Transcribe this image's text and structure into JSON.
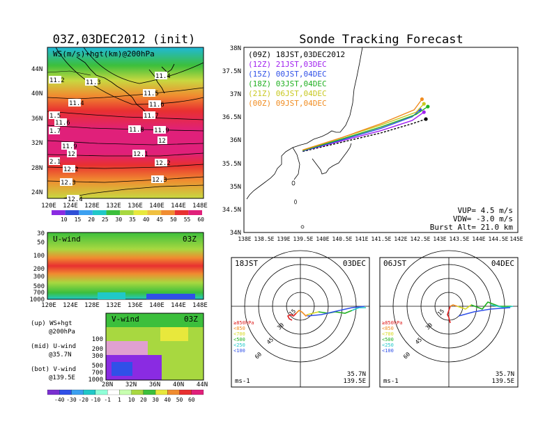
{
  "left_panel": {
    "title": "03Z,03DEC2012 (init)",
    "map_label": "WS(m/s)+hgt(km)@200hPa",
    "lat_ticks": [
      "44N",
      "40N",
      "36N",
      "32N",
      "28N",
      "24N"
    ],
    "lon_ticks": [
      "120E",
      "124E",
      "128E",
      "132E",
      "136E",
      "140E",
      "144E",
      "148E"
    ],
    "contour_labels": [
      "11.2",
      "11.3",
      "11.4",
      "11.5",
      "11.6",
      "11.7",
      "11.8",
      "11.9",
      "12",
      "12.1",
      "12.2",
      "12.3",
      "12.4",
      "11.4",
      "11.5",
      "11.6",
      "1.5",
      "11.6",
      "1.7",
      "11.9",
      "12",
      "2.1",
      "12.2",
      "12.3",
      "12.4"
    ],
    "colorbar_ticks": [
      "10",
      "15",
      "20",
      "25",
      "30",
      "35",
      "40",
      "45",
      "50",
      "55",
      "60"
    ],
    "colors": [
      "#8a2be2",
      "#2f4fd6",
      "#3ca0f0",
      "#20c8c8",
      "#3cbf3c",
      "#a8d840",
      "#e8e83c",
      "#f0c040",
      "#f08c30",
      "#e83030",
      "#e0207a"
    ]
  },
  "uwind": {
    "label": "U-wind",
    "time": "03Z",
    "y_ticks": [
      "30",
      "50",
      "100",
      "200",
      "300",
      "500",
      "700",
      "1000"
    ],
    "x_ticks": [
      "120E",
      "124E",
      "128E",
      "132E",
      "136E",
      "140E",
      "144E",
      "148E"
    ]
  },
  "vwind": {
    "label": "V-wind",
    "time": "03Z",
    "y_ticks": [
      "100",
      "200",
      "300",
      "500",
      "700",
      "1000"
    ],
    "x_ticks": [
      "28N",
      "32N",
      "36N",
      "40N",
      "44N"
    ],
    "colorbar_ticks": [
      "-40",
      "-30",
      "-20",
      "-10",
      "-1",
      "1",
      "10",
      "20",
      "30",
      "40",
      "50",
      "60"
    ]
  },
  "legend_notes": [
    [
      "(up) WS+hgt",
      "@200hPa"
    ],
    [
      "(mid) U-wind",
      "@35.7N"
    ],
    [
      "(bot) V-wind",
      "@139.5E"
    ]
  ],
  "main": {
    "title": "Sonde Tracking Forecast",
    "lat_ticks": [
      "38N",
      "37.5N",
      "37N",
      "36.5N",
      "36N",
      "35.5N",
      "35N",
      "34.5N",
      "34N"
    ],
    "lon_ticks": [
      "138E",
      "138.5E",
      "139E",
      "139.5E",
      "140E",
      "140.5E",
      "141E",
      "141.5E",
      "142E",
      "142.5E",
      "143E",
      "143.5E",
      "144E",
      "144.5E",
      "145E"
    ],
    "legend": [
      {
        "label": "(09Z)  18JST,03DEC2012",
        "color": "#000000"
      },
      {
        "label": "(12Z)  21JST,03DEC",
        "color": "#a020f0"
      },
      {
        "label": "(15Z)  00JST,04DEC",
        "color": "#3050e8"
      },
      {
        "label": "(18Z)  03JST,04DEC",
        "color": "#20b020"
      },
      {
        "label": "(21Z)  06JST,04DEC",
        "color": "#c8c820"
      },
      {
        "label": "(00Z)  09JST,04DEC",
        "color": "#f08c20"
      }
    ],
    "info": [
      "VUP=  4.5 m/s",
      "VDW= -3.0 m/s",
      "Burst Alt= 21.0 km"
    ]
  },
  "hodo_left": {
    "time": "18JST",
    "date": "03DEC",
    "unit": "ms-1",
    "lat": "35.7N",
    "lon": "139.5E",
    "rings": [
      "15",
      "30",
      "45",
      "60"
    ],
    "levels": [
      "≥850hPa",
      "<850",
      "<700",
      "<500",
      "<250",
      "<100"
    ],
    "level_colors": [
      "#e02020",
      "#f08c20",
      "#d8d820",
      "#20b020",
      "#20c8c8",
      "#3050e8"
    ]
  },
  "hodo_right": {
    "time": "06JST",
    "date": "04DEC",
    "unit": "ms-1",
    "lat": "35.7N",
    "lon": "139.5E",
    "rings": [
      "15",
      "30",
      "45",
      "60"
    ],
    "levels": [
      "≥850hPa",
      "<850",
      "<700",
      "<500",
      "<250",
      "<100"
    ],
    "level_colors": [
      "#e02020",
      "#f08c20",
      "#d8d820",
      "#20b020",
      "#20c8c8",
      "#3050e8"
    ]
  },
  "chart_data": [
    {
      "type": "heatmap",
      "title": "03Z,03DEC2012 (init)",
      "subtitle": "WS(m/s)+hgt(km)@200hPa",
      "x_ticks": [
        "120E",
        "124E",
        "128E",
        "132E",
        "136E",
        "140E",
        "144E",
        "148E"
      ],
      "y_ticks": [
        "24N",
        "28N",
        "32N",
        "36N",
        "40N",
        "44N"
      ],
      "colorbar": [
        10,
        15,
        20,
        25,
        30,
        35,
        40,
        45,
        50,
        55,
        60
      ]
    },
    {
      "type": "heatmap",
      "title": "U-wind",
      "x_ticks": [
        "120E",
        "124E",
        "128E",
        "132E",
        "136E",
        "140E",
        "144E",
        "148E"
      ],
      "y_ticks": [
        30,
        50,
        100,
        200,
        300,
        500,
        700,
        1000
      ]
    },
    {
      "type": "heatmap",
      "title": "V-wind",
      "x_ticks": [
        "28N",
        "32N",
        "36N",
        "40N",
        "44N"
      ],
      "y_ticks": [
        100,
        200,
        300,
        500,
        700,
        1000
      ],
      "colorbar": [
        -40,
        -30,
        -20,
        -10,
        -1,
        1,
        10,
        20,
        30,
        40,
        50,
        60
      ]
    },
    {
      "type": "line",
      "title": "Sonde Tracking Forecast",
      "xlim": [
        138,
        145
      ],
      "ylim": [
        34,
        38
      ],
      "series": [
        {
          "name": "(09Z)  18JST,03DEC2012",
          "x": [
            139.5,
            140.5,
            141.5,
            142.3,
            142.65
          ],
          "y": [
            35.75,
            35.95,
            36.15,
            36.35,
            36.45
          ]
        },
        {
          "name": "(12Z)  21JST,03DEC",
          "x": [
            139.5,
            140.5,
            141.5,
            142.3,
            142.6
          ],
          "y": [
            35.76,
            35.98,
            36.2,
            36.42,
            36.6
          ]
        },
        {
          "name": "(15Z)  00JST,04DEC",
          "x": [
            139.5,
            140.5,
            141.5,
            142.3,
            142.5
          ],
          "y": [
            35.76,
            36.0,
            36.25,
            36.5,
            36.65
          ]
        },
        {
          "name": "(18Z)  03JST,04DEC",
          "x": [
            139.5,
            140.5,
            141.5,
            142.4,
            142.7
          ],
          "y": [
            35.77,
            36.02,
            36.28,
            36.55,
            36.72
          ]
        },
        {
          "name": "(21Z)  06JST,04DEC",
          "x": [
            139.5,
            140.5,
            141.5,
            142.4,
            142.6
          ],
          "y": [
            35.78,
            36.05,
            36.32,
            36.6,
            36.78
          ]
        },
        {
          "name": "(00Z)  09JST,04DEC",
          "x": [
            139.5,
            140.5,
            141.5,
            142.35,
            142.55
          ],
          "y": [
            35.78,
            36.05,
            36.35,
            36.65,
            36.88
          ]
        }
      ]
    }
  ]
}
